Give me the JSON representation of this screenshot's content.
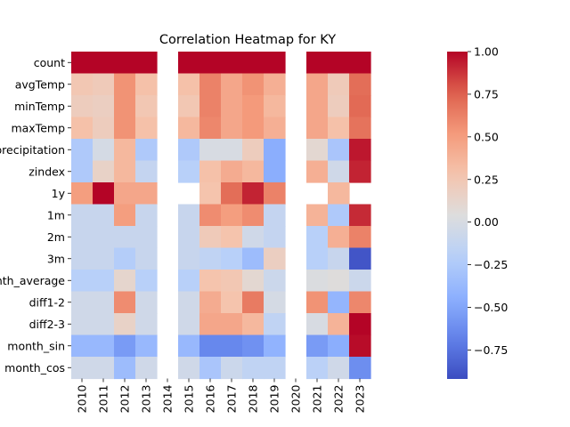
{
  "chart_data": {
    "type": "heatmap",
    "title": "Correlation Heatmap for KY",
    "xlabel": "",
    "ylabel": "",
    "colormap": "coolwarm",
    "vmin": -0.92,
    "vmax": 1.0,
    "colorbar_ticks": [
      -0.75,
      -0.5,
      -0.25,
      0.0,
      0.25,
      0.5,
      0.75,
      1.0
    ],
    "colorbar_tick_labels": [
      "−0.75",
      "−0.50",
      "−0.25",
      "0.00",
      "0.25",
      "0.50",
      "0.75",
      "1.00"
    ],
    "columns": [
      "2010",
      "2011",
      "2012",
      "2013",
      "2014",
      "2015",
      "2016",
      "2017",
      "2018",
      "2019",
      "2020",
      "2021",
      "2022",
      "2023"
    ],
    "rows": [
      "count",
      "avgTemp",
      "minTemp",
      "maxTemp",
      "precipitation",
      "zindex",
      "1y",
      "1m",
      "2m",
      "3m",
      "month_average",
      "diff1-2",
      "diff2-3",
      "month_sin",
      "month_cos"
    ],
    "values": [
      [
        1.0,
        1.0,
        1.0,
        1.0,
        null,
        1.0,
        1.0,
        1.0,
        1.0,
        1.0,
        null,
        1.0,
        1.0,
        1.0
      ],
      [
        0.25,
        0.22,
        0.55,
        0.3,
        null,
        0.3,
        0.62,
        0.45,
        0.55,
        0.4,
        null,
        0.45,
        0.22,
        0.7
      ],
      [
        0.2,
        0.18,
        0.55,
        0.25,
        null,
        0.25,
        0.62,
        0.45,
        0.52,
        0.35,
        null,
        0.45,
        0.2,
        0.72
      ],
      [
        0.3,
        0.2,
        0.55,
        0.3,
        null,
        0.35,
        0.6,
        0.45,
        0.52,
        0.4,
        null,
        0.45,
        0.3,
        0.68
      ],
      [
        -0.25,
        -0.02,
        0.35,
        -0.25,
        null,
        -0.25,
        0.0,
        0.0,
        0.2,
        -0.45,
        null,
        0.1,
        -0.28,
        0.95
      ],
      [
        -0.25,
        0.15,
        0.35,
        -0.12,
        null,
        -0.2,
        0.3,
        0.42,
        0.35,
        -0.45,
        null,
        0.4,
        -0.05,
        0.92
      ],
      [
        0.5,
        1.0,
        0.45,
        0.45,
        null,
        null,
        0.28,
        0.7,
        0.92,
        0.62,
        null,
        null,
        0.35,
        null
      ],
      [
        -0.1,
        -0.1,
        0.5,
        -0.1,
        null,
        -0.1,
        0.58,
        0.5,
        0.58,
        -0.12,
        null,
        0.38,
        -0.25,
        0.9
      ],
      [
        -0.1,
        -0.1,
        -0.1,
        -0.1,
        null,
        -0.1,
        0.22,
        0.28,
        -0.05,
        -0.12,
        null,
        -0.2,
        0.4,
        0.62
      ],
      [
        -0.1,
        -0.1,
        -0.22,
        -0.1,
        null,
        -0.1,
        -0.15,
        -0.2,
        -0.35,
        0.18,
        null,
        -0.2,
        -0.1,
        -0.88
      ],
      [
        -0.2,
        -0.2,
        0.12,
        -0.2,
        null,
        -0.2,
        0.28,
        0.25,
        0.1,
        -0.08,
        null,
        0.02,
        0.05,
        -0.08
      ],
      [
        -0.05,
        -0.05,
        0.58,
        -0.05,
        null,
        -0.05,
        0.42,
        0.28,
        0.65,
        -0.02,
        null,
        0.55,
        -0.4,
        0.6
      ],
      [
        -0.05,
        -0.05,
        0.15,
        -0.05,
        null,
        -0.05,
        0.45,
        0.45,
        0.35,
        -0.15,
        null,
        0.0,
        0.38,
        1.0
      ],
      [
        -0.38,
        -0.38,
        -0.55,
        -0.38,
        null,
        -0.38,
        -0.65,
        -0.65,
        -0.6,
        -0.42,
        null,
        -0.55,
        -0.45,
        0.98
      ],
      [
        -0.05,
        -0.05,
        -0.35,
        -0.05,
        null,
        -0.05,
        -0.28,
        -0.08,
        -0.15,
        -0.15,
        null,
        -0.18,
        -0.05,
        -0.62
      ]
    ]
  }
}
